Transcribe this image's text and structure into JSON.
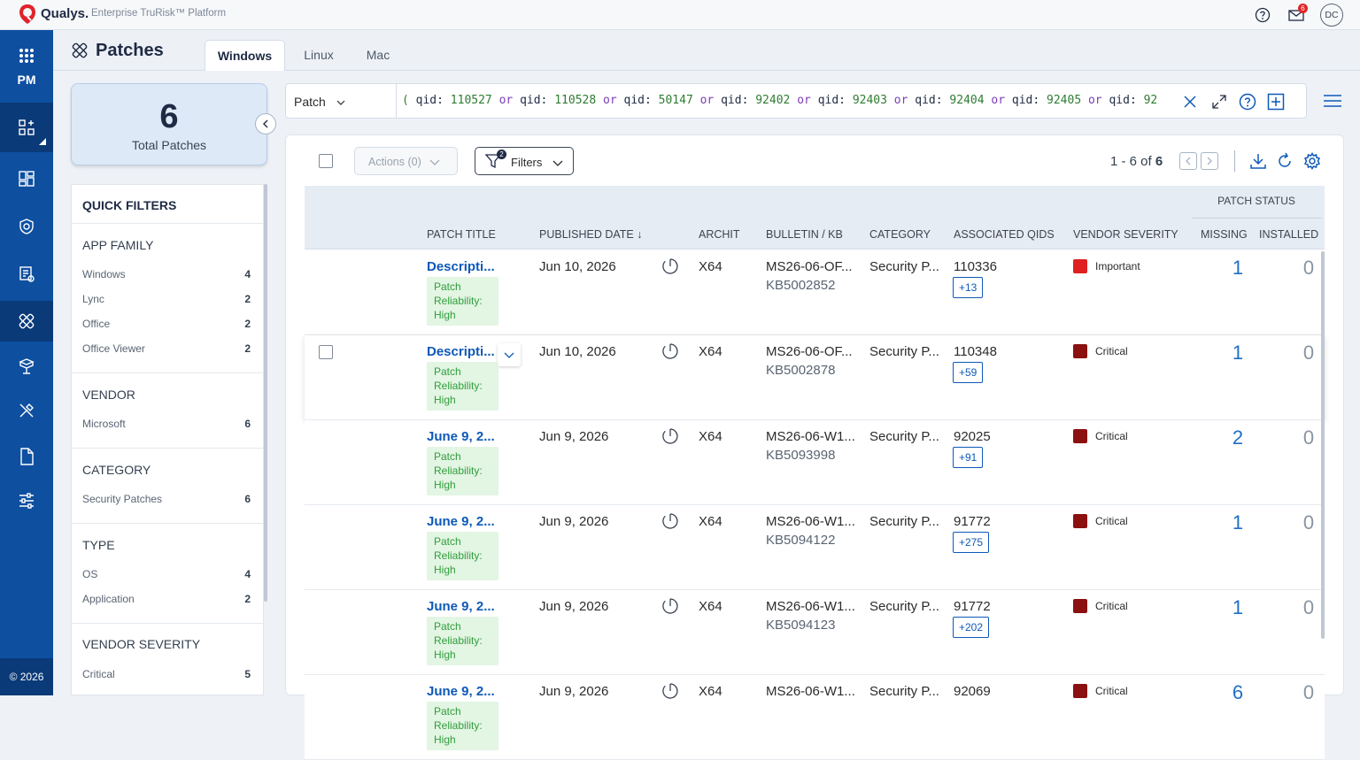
{
  "header": {
    "brand": "Qualys.",
    "tagline": "Enterprise TruRisk™ Platform",
    "notification_count": "6",
    "user_initials": "DC",
    "icons": [
      "help-circle-icon",
      "mail-icon"
    ]
  },
  "sidenav": {
    "app_label": "PM",
    "copyright": "© 2026",
    "items": [
      "apps-grid-icon",
      "dashboard-add-icon",
      "dashboard-icon",
      "shield-target-icon",
      "assets-icon",
      "patches-icon",
      "deploy-icon",
      "tools-icon",
      "document-icon",
      "settings-sliders-icon"
    ]
  },
  "page": {
    "title": "Patches",
    "tabs": [
      "Windows",
      "Linux",
      "Mac"
    ],
    "active_tab": "Windows"
  },
  "summary": {
    "total": "6",
    "label": "Total Patches"
  },
  "quick_filters": {
    "title": "QUICK FILTERS",
    "sections": [
      {
        "title": "APP FAMILY",
        "items": [
          {
            "label": "Windows",
            "count": "4"
          },
          {
            "label": "Lync",
            "count": "2"
          },
          {
            "label": "Office",
            "count": "2"
          },
          {
            "label": "Office Viewer",
            "count": "2"
          }
        ]
      },
      {
        "title": "VENDOR",
        "items": [
          {
            "label": "Microsoft",
            "count": "6"
          }
        ]
      },
      {
        "title": "CATEGORY",
        "items": [
          {
            "label": "Security Patches",
            "count": "6"
          }
        ]
      },
      {
        "title": "TYPE",
        "items": [
          {
            "label": "OS",
            "count": "4"
          },
          {
            "label": "Application",
            "count": "2"
          }
        ]
      },
      {
        "title": "VENDOR SEVERITY",
        "items": [
          {
            "label": "Critical",
            "count": "5"
          }
        ]
      }
    ]
  },
  "query": {
    "selector": "Patch",
    "tokens": [
      {
        "t": "par",
        "v": "( "
      },
      {
        "t": "txt",
        "v": "qid: "
      },
      {
        "t": "num",
        "v": "110527"
      },
      {
        "t": "kw",
        "v": " or "
      },
      {
        "t": "txt",
        "v": "qid: "
      },
      {
        "t": "num",
        "v": "110528"
      },
      {
        "t": "kw",
        "v": " or "
      },
      {
        "t": "txt",
        "v": "qid: "
      },
      {
        "t": "num",
        "v": "50147"
      },
      {
        "t": "kw",
        "v": " or "
      },
      {
        "t": "txt",
        "v": "qid: "
      },
      {
        "t": "num",
        "v": "92402"
      },
      {
        "t": "kw",
        "v": " or "
      },
      {
        "t": "txt",
        "v": "qid: "
      },
      {
        "t": "num",
        "v": "92403"
      },
      {
        "t": "kw",
        "v": " or "
      },
      {
        "t": "txt",
        "v": "qid: "
      },
      {
        "t": "num",
        "v": "92404"
      },
      {
        "t": "kw",
        "v": " or "
      },
      {
        "t": "txt",
        "v": "qid: "
      },
      {
        "t": "num",
        "v": "92405"
      },
      {
        "t": "kw",
        "v": " or "
      },
      {
        "t": "txt",
        "v": "qid: "
      },
      {
        "t": "num",
        "v": "92"
      }
    ]
  },
  "toolbar": {
    "actions_label": "Actions (0)",
    "filters_label": "Filters",
    "filters_badge": "2",
    "pager_range": "1 - 6 of ",
    "pager_total": "6"
  },
  "table": {
    "columns": {
      "patch_title": "PATCH TITLE",
      "published_date": "PUBLISHED DATE ↓",
      "architecture": "ARCHIT",
      "bulletin": "BULLETIN / KB",
      "category": "CATEGORY",
      "qids": "ASSOCIATED QIDS",
      "vendor_severity": "VENDOR SEVERITY",
      "patch_status": "PATCH STATUS",
      "missing": "MISSING",
      "installed": "INSTALLED"
    },
    "reliability": [
      "Patch",
      "Reliability:",
      "High"
    ],
    "rows": [
      {
        "title": "Descripti...",
        "date": "Jun 10, 2026",
        "arch": "X64",
        "bulletin": "MS26-06-OF...",
        "kb": "KB5002852",
        "category": "Security P...",
        "qid": "110336",
        "qid_more": "+13",
        "severity": "Important",
        "sev_color": "#e02020",
        "missing": "1",
        "installed": "0"
      },
      {
        "title": "Descripti...",
        "date": "Jun 10, 2026",
        "arch": "X64",
        "bulletin": "MS26-06-OF...",
        "kb": "KB5002878",
        "category": "Security P...",
        "qid": "110348",
        "qid_more": "+59",
        "severity": "Critical",
        "sev_color": "#8b1010",
        "missing": "1",
        "installed": "0"
      },
      {
        "title": "June 9, 2...",
        "date": "Jun 9, 2026",
        "arch": "X64",
        "bulletin": "MS26-06-W1...",
        "kb": "KB5093998",
        "category": "Security P...",
        "qid": "92025",
        "qid_more": "+91",
        "severity": "Critical",
        "sev_color": "#8b1010",
        "missing": "2",
        "installed": "0"
      },
      {
        "title": "June 9, 2...",
        "date": "Jun 9, 2026",
        "arch": "X64",
        "bulletin": "MS26-06-W1...",
        "kb": "KB5094122",
        "category": "Security P...",
        "qid": "91772",
        "qid_more": "+275",
        "severity": "Critical",
        "sev_color": "#8b1010",
        "missing": "1",
        "installed": "0"
      },
      {
        "title": "June 9, 2...",
        "date": "Jun 9, 2026",
        "arch": "X64",
        "bulletin": "MS26-06-W1...",
        "kb": "KB5094123",
        "category": "Security P...",
        "qid": "91772",
        "qid_more": "+202",
        "severity": "Critical",
        "sev_color": "#8b1010",
        "missing": "1",
        "installed": "0"
      },
      {
        "title": "June 9, 2...",
        "date": "Jun 9, 2026",
        "arch": "X64",
        "bulletin": "MS26-06-W1...",
        "kb": "",
        "category": "Security P...",
        "qid": "92069",
        "qid_more": "",
        "severity": "Critical",
        "sev_color": "#8b1010",
        "missing": "6",
        "installed": "0"
      }
    ]
  }
}
